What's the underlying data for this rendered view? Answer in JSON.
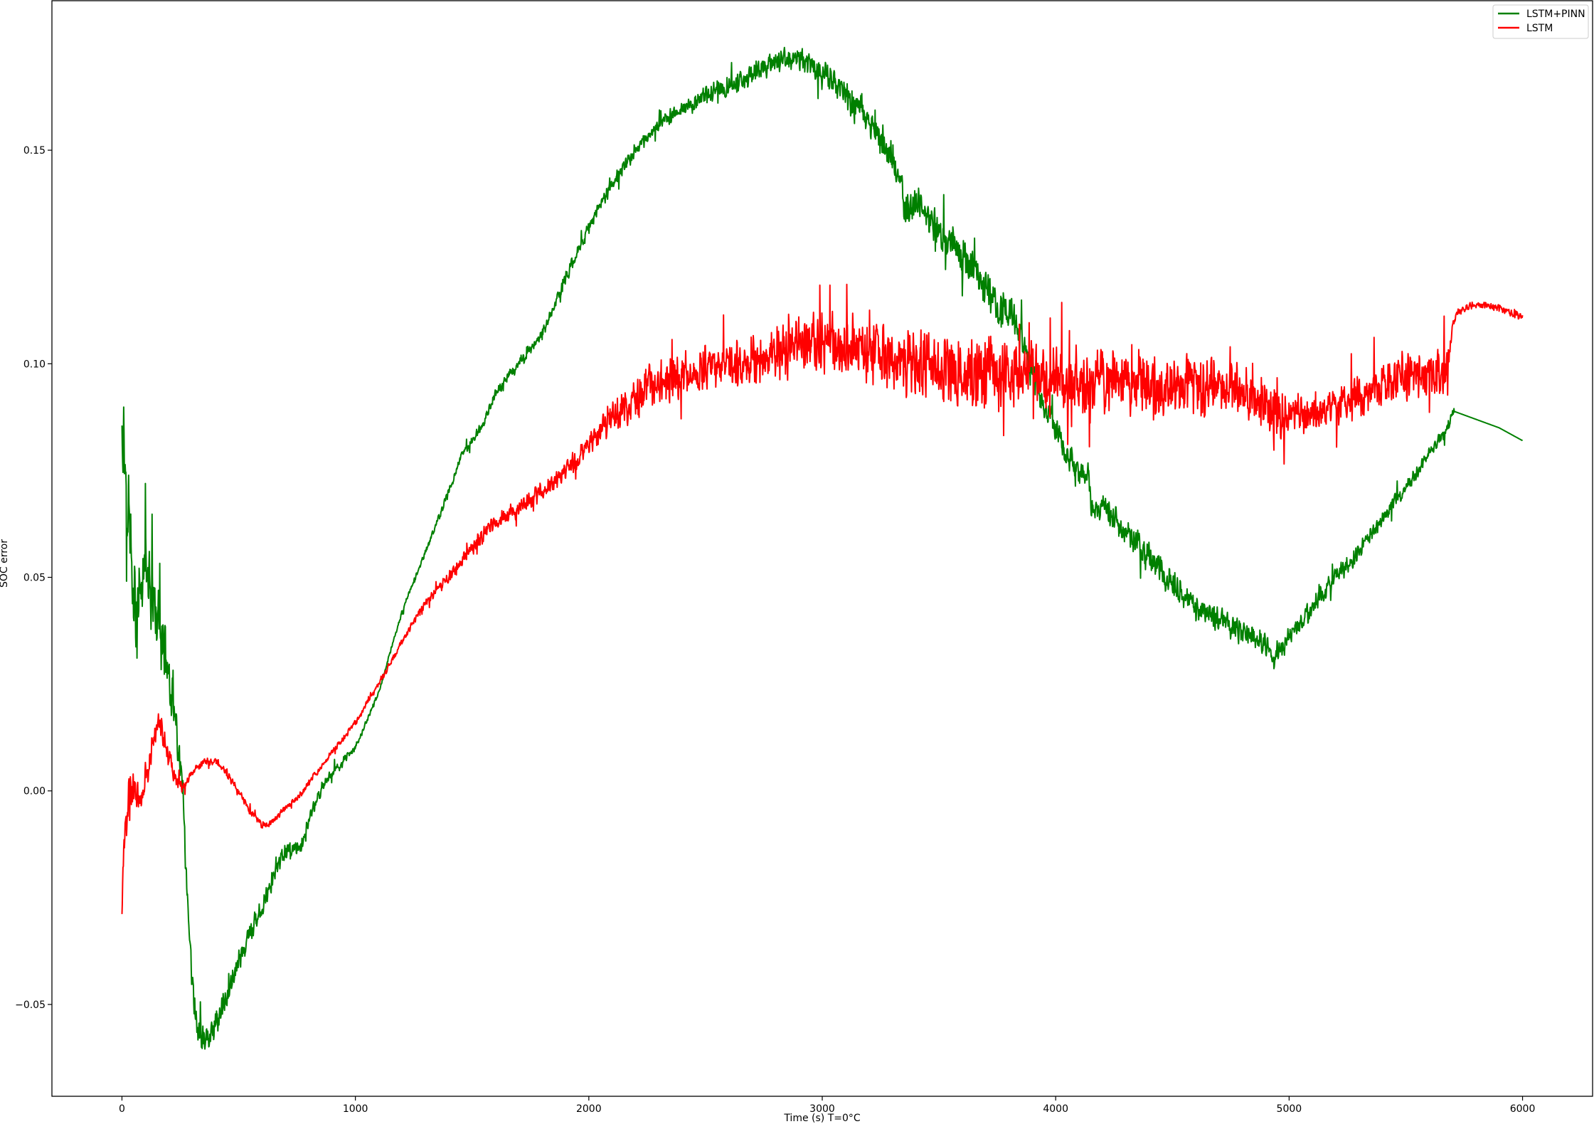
{
  "chart_data": {
    "type": "line",
    "title": "",
    "xlabel": "Time (s) T=0°C",
    "ylabel": "SOC error",
    "xlim": [
      -300,
      6300
    ],
    "ylim": [
      -0.0715,
      0.185
    ],
    "xticks": [
      0,
      1000,
      2000,
      3000,
      4000,
      5000,
      6000
    ],
    "xtick_labels": [
      "0",
      "1000",
      "2000",
      "3000",
      "4000",
      "5000",
      "6000"
    ],
    "yticks": [
      -0.05,
      0.0,
      0.05,
      0.1,
      0.15
    ],
    "ytick_labels": [
      "−0.05",
      "0.00",
      "0.05",
      "0.10",
      "0.15"
    ],
    "grid": false,
    "legend_position": "top-right",
    "series": [
      {
        "name": "LSTM+PINN",
        "color": "#008000",
        "noise": [
          [
            0,
            0.012
          ],
          [
            320,
            0.004
          ],
          [
            1100,
            0.0005
          ],
          [
            1700,
            0.0015
          ],
          [
            2400,
            0.002
          ],
          [
            3000,
            0.004
          ],
          [
            3600,
            0.005
          ],
          [
            4000,
            0.004
          ],
          [
            4500,
            0.004
          ],
          [
            5000,
            0.003
          ],
          [
            5700,
            0.0015
          ],
          [
            5710,
            0.0
          ],
          [
            6000,
            0.0
          ]
        ],
        "x": [
          0,
          20,
          40,
          60,
          80,
          100,
          130,
          160,
          200,
          230,
          260,
          280,
          300,
          320,
          350,
          380,
          420,
          500,
          600,
          700,
          770,
          800,
          850,
          900,
          1000,
          1100,
          1200,
          1300,
          1400,
          1450,
          1500,
          1550,
          1600,
          1700,
          1800,
          1900,
          2000,
          2100,
          2200,
          2300,
          2400,
          2500,
          2600,
          2700,
          2800,
          2850,
          2900,
          2950,
          3000,
          3050,
          3100,
          3200,
          3300,
          3340,
          3350,
          3400,
          3500,
          3600,
          3700,
          3750,
          3800,
          3850,
          3900,
          3950,
          4000,
          4050,
          4100,
          4140,
          4150,
          4200,
          4300,
          4400,
          4500,
          4600,
          4700,
          4800,
          4900,
          4930,
          5000,
          5100,
          5200,
          5300,
          5400,
          5500,
          5600,
          5680,
          5700,
          5800,
          5900,
          6000
        ],
        "values": [
          0.088,
          0.072,
          0.058,
          0.04,
          0.047,
          0.055,
          0.045,
          0.038,
          0.028,
          0.014,
          0.0,
          -0.028,
          -0.045,
          -0.055,
          -0.058,
          -0.057,
          -0.052,
          -0.04,
          -0.027,
          -0.014,
          -0.013,
          -0.007,
          0.0,
          0.004,
          0.01,
          0.023,
          0.042,
          0.056,
          0.07,
          0.078,
          0.082,
          0.086,
          0.093,
          0.1,
          0.107,
          0.12,
          0.132,
          0.142,
          0.15,
          0.156,
          0.16,
          0.163,
          0.165,
          0.168,
          0.171,
          0.172,
          0.171,
          0.17,
          0.168,
          0.167,
          0.163,
          0.157,
          0.148,
          0.143,
          0.135,
          0.138,
          0.131,
          0.125,
          0.118,
          0.113,
          0.112,
          0.107,
          0.098,
          0.09,
          0.085,
          0.079,
          0.074,
          0.075,
          0.066,
          0.067,
          0.06,
          0.055,
          0.048,
          0.043,
          0.04,
          0.037,
          0.034,
          0.031,
          0.036,
          0.043,
          0.05,
          0.056,
          0.064,
          0.071,
          0.079,
          0.085,
          0.089,
          0.087,
          0.085,
          0.082
        ]
      },
      {
        "name": "LSTM",
        "color": "#ff0000",
        "noise": [
          [
            0,
            0.006
          ],
          [
            300,
            0.001
          ],
          [
            1200,
            0.0008
          ],
          [
            1500,
            0.002
          ],
          [
            2000,
            0.003
          ],
          [
            2200,
            0.006
          ],
          [
            2800,
            0.007
          ],
          [
            3000,
            0.008
          ],
          [
            3400,
            0.009
          ],
          [
            3700,
            0.01
          ],
          [
            3900,
            0.009
          ],
          [
            4500,
            0.008
          ],
          [
            5000,
            0.006
          ],
          [
            5100,
            0.004
          ],
          [
            5300,
            0.006
          ],
          [
            5600,
            0.007
          ],
          [
            5680,
            0.007
          ],
          [
            5700,
            0.001
          ],
          [
            6000,
            0.001
          ]
        ],
        "x": [
          0,
          10,
          30,
          50,
          70,
          100,
          130,
          160,
          200,
          230,
          260,
          300,
          350,
          400,
          450,
          500,
          550,
          600,
          650,
          700,
          750,
          800,
          900,
          1000,
          1100,
          1200,
          1300,
          1400,
          1500,
          1600,
          1700,
          1800,
          1900,
          2000,
          2100,
          2200,
          2300,
          2500,
          2700,
          2900,
          3000,
          3200,
          3400,
          3600,
          3800,
          4000,
          4200,
          4400,
          4600,
          4800,
          4950,
          5100,
          5200,
          5300,
          5400,
          5500,
          5600,
          5680,
          5700,
          5720,
          5800,
          5900,
          6000
        ],
        "values": [
          -0.028,
          -0.01,
          -0.002,
          0.002,
          -0.003,
          0.003,
          0.01,
          0.017,
          0.008,
          0.003,
          0.001,
          0.004,
          0.007,
          0.007,
          0.004,
          0.0,
          -0.005,
          -0.008,
          -0.007,
          -0.004,
          -0.002,
          0.002,
          0.009,
          0.016,
          0.025,
          0.035,
          0.044,
          0.05,
          0.057,
          0.063,
          0.066,
          0.07,
          0.075,
          0.081,
          0.087,
          0.092,
          0.096,
          0.099,
          0.101,
          0.104,
          0.105,
          0.103,
          0.1,
          0.098,
          0.098,
          0.097,
          0.096,
          0.095,
          0.095,
          0.094,
          0.088,
          0.088,
          0.09,
          0.092,
          0.095,
          0.097,
          0.097,
          0.098,
          0.109,
          0.112,
          0.114,
          0.113,
          0.111
        ]
      }
    ]
  }
}
